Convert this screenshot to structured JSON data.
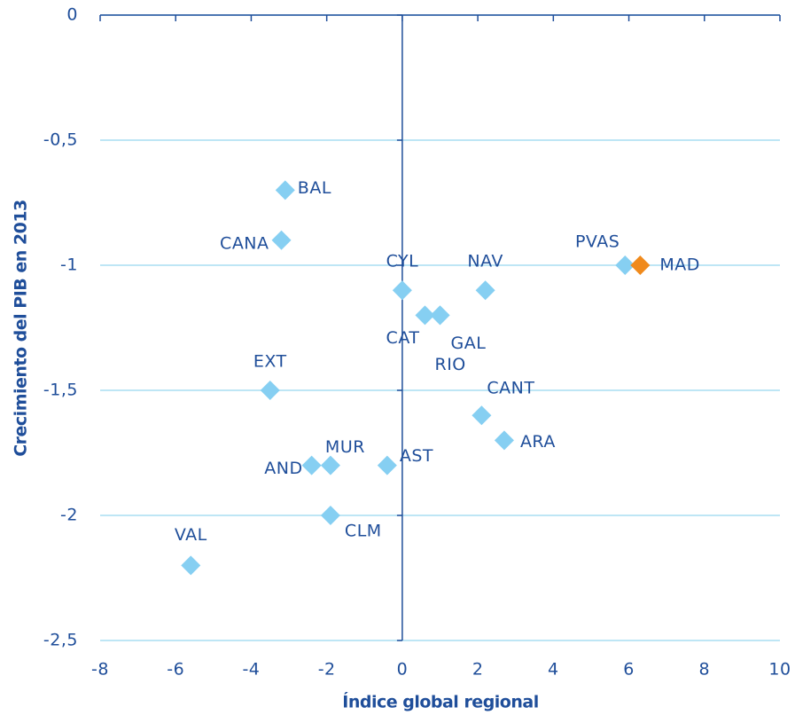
{
  "chart_data": {
    "type": "scatter",
    "x_label": "Índice global regional",
    "y_label": "Crecimiento  del PIB en 2013",
    "xlim": [
      -8,
      10
    ],
    "xticks": [
      -8,
      -6,
      -4,
      -2,
      0,
      2,
      4,
      6,
      8,
      10
    ],
    "ylim": [
      -2.5,
      0
    ],
    "yticks": [
      {
        "value": -2.5,
        "label": "-2,5"
      },
      -2,
      {
        "value": -1.5,
        "label": "-1,5"
      },
      -1,
      {
        "value": -0.5,
        "label": "-0,5"
      },
      0
    ],
    "grid": true,
    "points": [
      {
        "label": "BAL",
        "x": -3.1,
        "y": -0.7,
        "color": "#86cff2"
      },
      {
        "label": "CANA",
        "x": -3.2,
        "y": -0.9,
        "color": "#86cff2"
      },
      {
        "label": "CYL",
        "x": 0.0,
        "y": -1.1,
        "color": "#86cff2"
      },
      {
        "label": "NAV",
        "x": 2.2,
        "y": -1.1,
        "color": "#86cff2"
      },
      {
        "label": "PVAS",
        "x": 5.9,
        "y": -1.0,
        "color": "#86cff2"
      },
      {
        "label": "MAD",
        "x": 6.3,
        "y": -1.0,
        "color": "#f08a1c"
      },
      {
        "label": "CAT",
        "x": 0.6,
        "y": -1.2,
        "color": "#86cff2"
      },
      {
        "label": "GAL",
        "x": 1.0,
        "y": -1.2,
        "color": "#86cff2"
      },
      {
        "label": "RIO",
        "x": 1.0,
        "y": -1.2,
        "color": "#86cff2"
      },
      {
        "label": "EXT",
        "x": -3.5,
        "y": -1.5,
        "color": "#86cff2"
      },
      {
        "label": "CANT",
        "x": 2.1,
        "y": -1.6,
        "color": "#86cff2"
      },
      {
        "label": "ARA",
        "x": 2.7,
        "y": -1.7,
        "color": "#86cff2"
      },
      {
        "label": "AND",
        "x": -2.4,
        "y": -1.8,
        "color": "#86cff2"
      },
      {
        "label": "MUR",
        "x": -1.9,
        "y": -1.8,
        "color": "#86cff2"
      },
      {
        "label": "AST",
        "x": -0.4,
        "y": -1.8,
        "color": "#86cff2"
      },
      {
        "label": "CLM",
        "x": -1.9,
        "y": -2.0,
        "color": "#86cff2"
      },
      {
        "label": "VAL",
        "x": -5.6,
        "y": -2.2,
        "color": "#86cff2"
      }
    ]
  }
}
